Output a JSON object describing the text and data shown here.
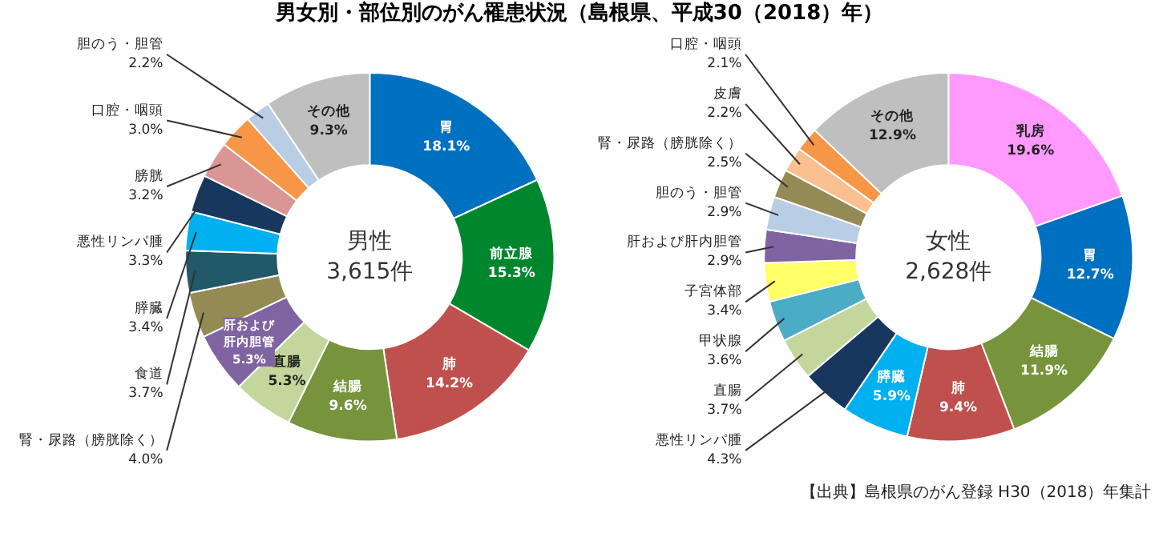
{
  "chart_data": [
    {
      "type": "donut",
      "title": "男女別・部位別のがん罹患状況（島根県、平成30（2018）年）",
      "categories": [
        "胃",
        "前立腺",
        "肺",
        "結腸",
        "直腸",
        "肝および肝内胆管",
        "腎・尿路（膀胱除く）",
        "食道",
        "膵臓",
        "悪性リンパ腫",
        "膀胱",
        "口腔・咽頭",
        "胆のう・胆管",
        "その他"
      ],
      "values": [
        18.1,
        15.3,
        14.2,
        9.6,
        5.3,
        5.3,
        4.0,
        3.7,
        3.4,
        3.3,
        3.2,
        3.0,
        2.2,
        9.3
      ],
      "colors": [
        "#0070c0",
        "#00862c",
        "#c0504d",
        "#77933c",
        "#c3d69b",
        "#8064a2",
        "#948a54",
        "#215968",
        "#00b0f0",
        "#17375e",
        "#da9694",
        "#f79646",
        "#b9cde5",
        "#bfbfbf"
      ],
      "value_labels": [
        "18.1%",
        "15.3%",
        "14.2%",
        "9.6%",
        "5.3%",
        "5.3%",
        "4.0%",
        "3.7%",
        "3.4%",
        "3.3%",
        "3.2%",
        "3.0%",
        "2.2%",
        "9.3%"
      ],
      "annotations": [
        "男性\n3,615件"
      ]
    },
    {
      "type": "donut",
      "categories": [
        "乳房",
        "胃",
        "結腸",
        "肺",
        "膵臓",
        "悪性リンパ腫",
        "直腸",
        "甲状腺",
        "子宮体部",
        "肝および肝内胆管",
        "胆のう・胆管",
        "腎・尿路（膀胱除く）",
        "皮膚",
        "口腔・咽頭",
        "その他"
      ],
      "values": [
        19.6,
        12.7,
        11.9,
        9.4,
        5.9,
        4.3,
        3.7,
        3.6,
        3.4,
        2.9,
        2.9,
        2.5,
        2.2,
        2.1,
        12.9
      ],
      "colors": [
        "#ff99ff",
        "#0070c0",
        "#77933c",
        "#c0504d",
        "#00b0f0",
        "#17375e",
        "#c3d69b",
        "#4bacc6",
        "#ffff66",
        "#8064a2",
        "#b9cde5",
        "#948a54",
        "#fac090",
        "#f79646",
        "#bfbfbf"
      ],
      "value_labels": [
        "19.6%",
        "12.7%",
        "11.9%",
        "9.4%",
        "5.9%",
        "4.3%",
        "3.7%",
        "3.6%",
        "3.4%",
        "2.9%",
        "2.9%",
        "2.5%",
        "2.2%",
        "2.1%",
        "12.9%"
      ],
      "annotations": [
        "女性\n2,628件",
        "【出典】島根県のがん登録 H30（2018）年集計"
      ]
    }
  ]
}
